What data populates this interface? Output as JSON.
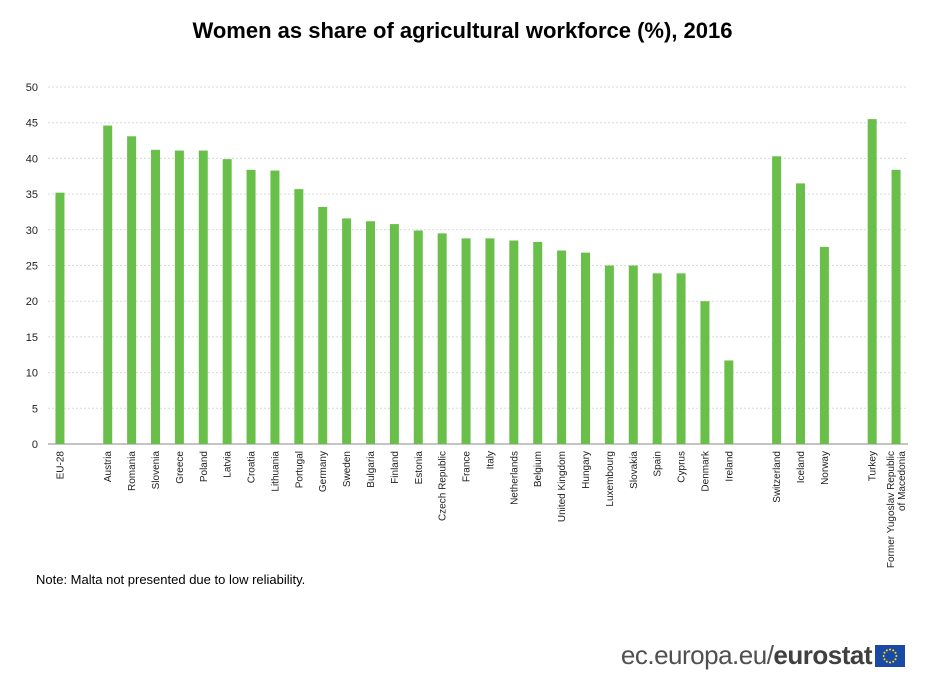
{
  "chart_data": {
    "type": "bar",
    "title": "Women as share of agricultural workforce (%), 2016",
    "xlabel": "",
    "ylabel": "",
    "ylim": [
      0,
      50
    ],
    "yticks": [
      0,
      5,
      10,
      15,
      20,
      25,
      30,
      35,
      40,
      45,
      50
    ],
    "grid": true,
    "bar_color": "#6abf4b",
    "groups": [
      {
        "categories": [
          "EU-28"
        ],
        "values": [
          35.2
        ]
      },
      {
        "categories": [
          "Austria",
          "Romania",
          "Slovenia",
          "Greece",
          "Poland",
          "Latvia",
          "Croatia",
          "Lithuania",
          "Portugal",
          "Germany",
          "Sweden",
          "Bulgaria",
          "Finland",
          "Estonia",
          "Czech Republic",
          "France",
          "Italy",
          "Netherlands",
          "Belgium",
          "United Kingdom",
          "Hungary",
          "Luxembourg",
          "Slovakia",
          "Spain",
          "Cyprus",
          "Denmark",
          "Ireland"
        ],
        "values": [
          44.6,
          43.1,
          41.2,
          41.1,
          41.1,
          39.9,
          38.4,
          38.3,
          35.7,
          33.2,
          31.6,
          31.2,
          30.8,
          29.9,
          29.5,
          28.8,
          28.8,
          28.5,
          28.3,
          27.1,
          26.8,
          25.0,
          25.0,
          23.9,
          23.9,
          20.0,
          11.7
        ]
      },
      {
        "categories": [
          "Switzerland",
          "Iceland",
          "Norway"
        ],
        "values": [
          40.3,
          36.5,
          27.6
        ]
      },
      {
        "categories": [
          "Turkey",
          "Former Yugoslav Republic of Macedonia"
        ],
        "values": [
          45.5,
          38.4
        ]
      }
    ]
  },
  "note": "Note: Malta not presented due to low reliability.",
  "footer": {
    "domain": "ec.europa.eu/",
    "brand": "eurostat"
  }
}
